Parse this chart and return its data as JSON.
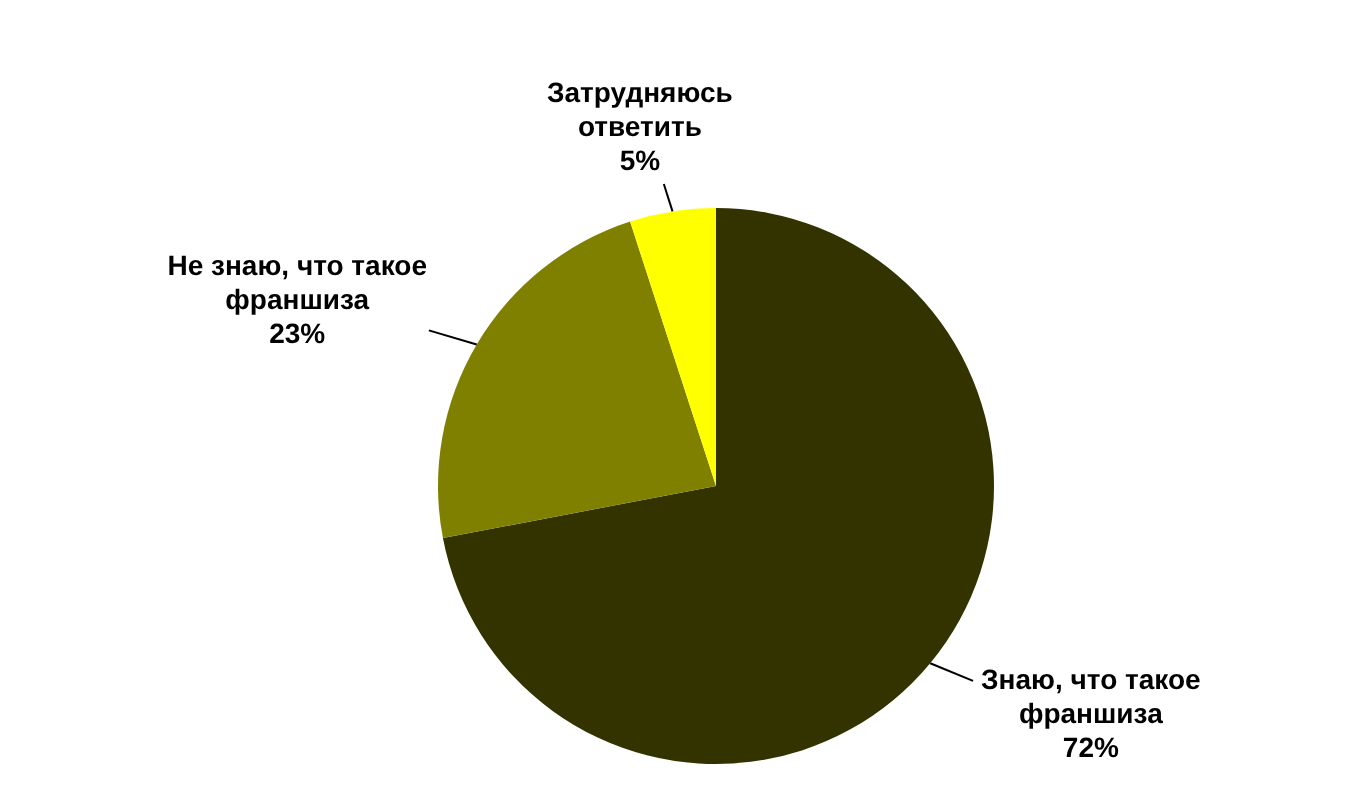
{
  "chart_data": {
    "type": "pie",
    "categories": [
      "Знаю, что такое франшиза",
      "Не знаю, что такое франшиза",
      "Затрудняюсь ответить"
    ],
    "values": [
      72,
      23,
      5
    ],
    "colors": [
      "#333300",
      "#808000",
      "#ffff00"
    ],
    "value_labels": [
      "72%",
      "23%",
      "5%"
    ]
  }
}
